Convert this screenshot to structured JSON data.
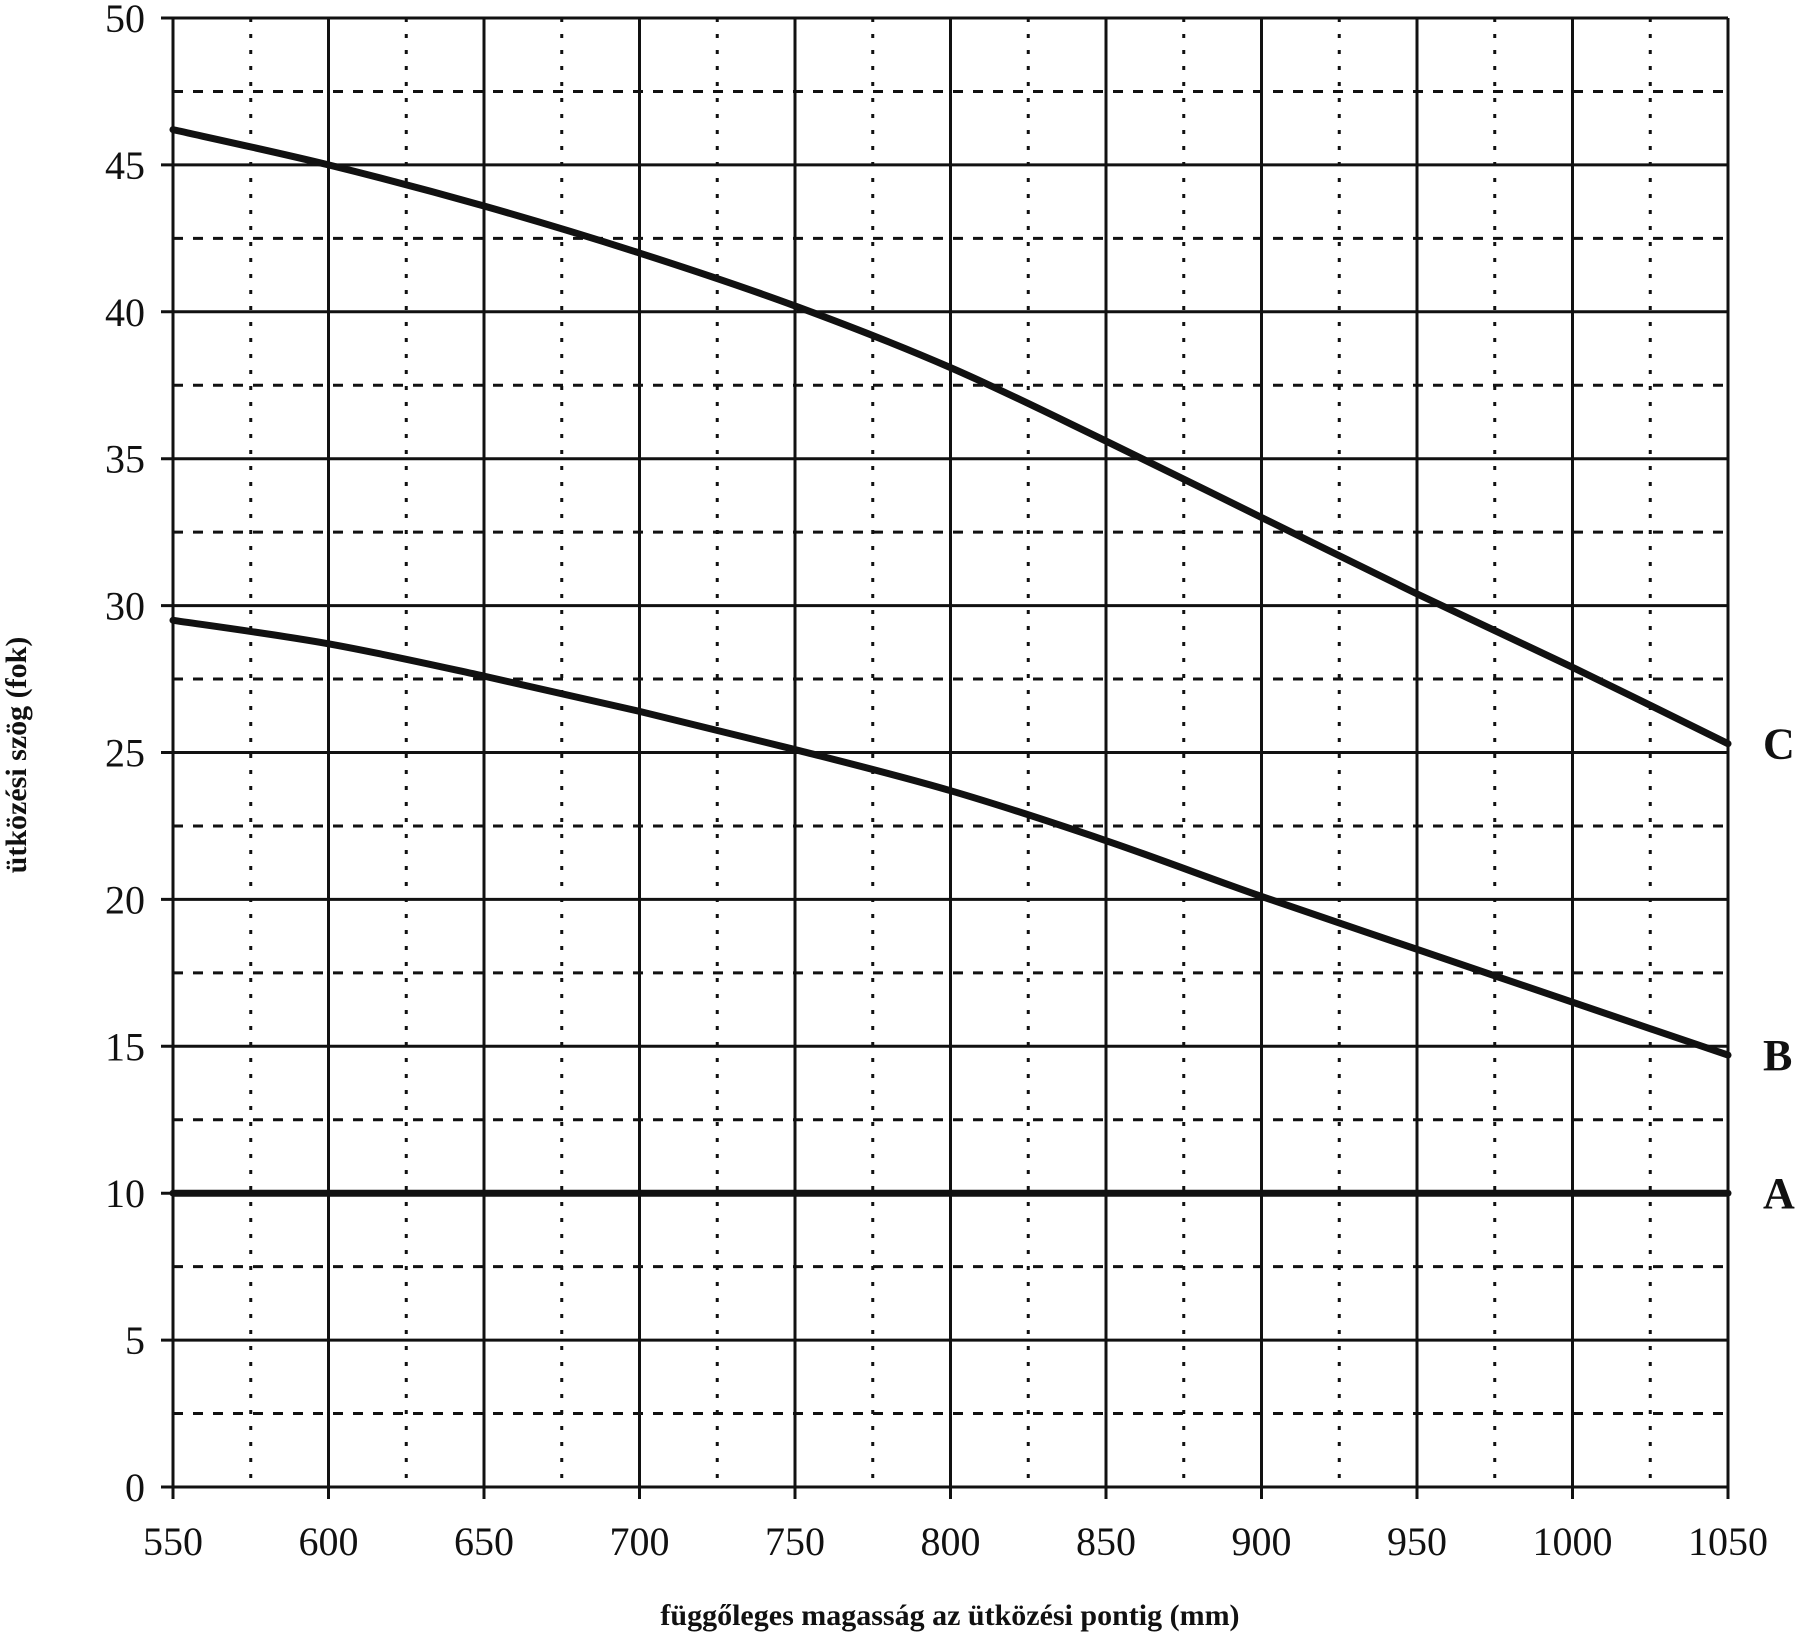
{
  "chart_data": {
    "type": "line",
    "title": "",
    "xlabel": "függőleges magasság az ütközési pontig (mm)",
    "ylabel": "ütközési szög (fok)",
    "xlim": [
      550,
      1050
    ],
    "ylim": [
      0,
      50
    ],
    "xticks": [
      "550",
      "600",
      "650",
      "700",
      "750",
      "800",
      "850",
      "900",
      "950",
      "1000",
      "1050"
    ],
    "yticks": [
      "0",
      "5",
      "10",
      "15",
      "20",
      "25",
      "30",
      "35",
      "40",
      "45",
      "50"
    ],
    "grid": {
      "major": true,
      "minor_dashed": true
    },
    "series": [
      {
        "name": "A",
        "x": [
          550,
          1050
        ],
        "y": [
          10,
          10
        ]
      },
      {
        "name": "B",
        "x": [
          550,
          600,
          650,
          700,
          750,
          800,
          850,
          900,
          950,
          1000,
          1050
        ],
        "y": [
          29.5,
          28.7,
          27.6,
          26.4,
          25.1,
          23.7,
          22.0,
          20.1,
          18.3,
          16.5,
          14.7
        ]
      },
      {
        "name": "C",
        "x": [
          550,
          600,
          650,
          700,
          750,
          800,
          850,
          900,
          950,
          1000,
          1050
        ],
        "y": [
          46.2,
          45.0,
          43.6,
          42.0,
          40.2,
          38.1,
          35.6,
          33.0,
          30.4,
          27.9,
          25.3
        ]
      }
    ]
  }
}
